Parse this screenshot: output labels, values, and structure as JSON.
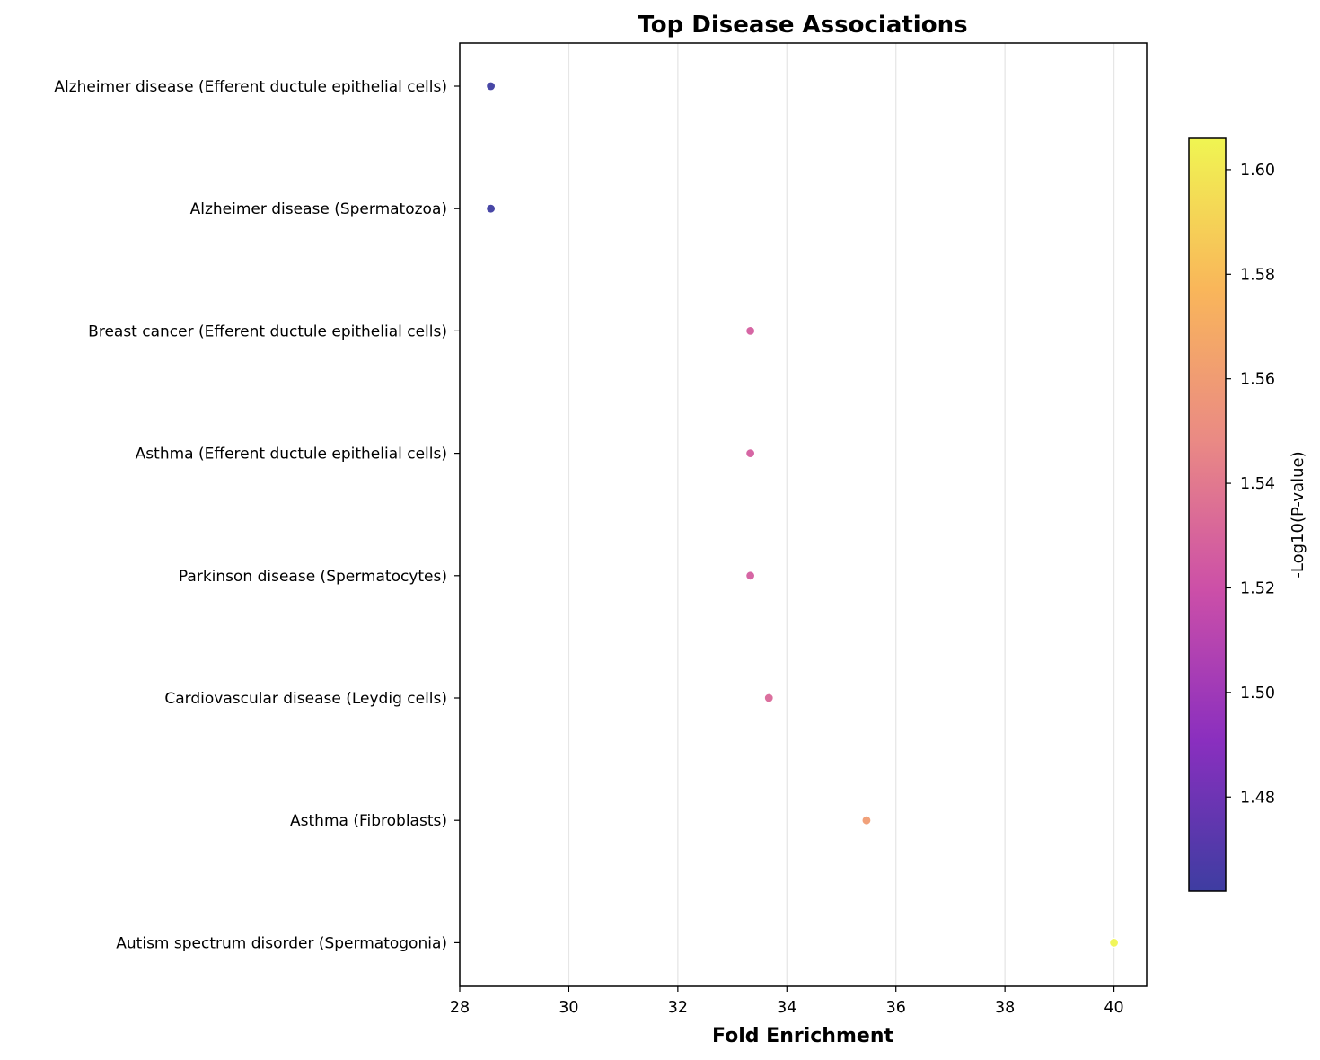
{
  "chart_data": {
    "type": "scatter",
    "title": "Top Disease Associations",
    "xlabel": "Fold Enrichment",
    "ylabel": "",
    "xlim": [
      28,
      40.6
    ],
    "xticks": [
      "28",
      "30",
      "32",
      "34",
      "36",
      "38",
      "40"
    ],
    "grid": "vertical",
    "categories": [
      "Alzheimer disease (Efferent ductule epithelial cells)",
      "Alzheimer disease (Spermatozoa)",
      "Breast cancer (Efferent ductule epithelial cells)",
      "Asthma (Efferent ductule epithelial cells)",
      "Parkinson disease (Spermatocytes)",
      "Cardiovascular disease (Leydig cells)",
      "Asthma (Fibroblasts)",
      "Autism spectrum disorder (Spermatogonia)"
    ],
    "points": [
      {
        "x": 28.57,
        "color_value": 1.462
      },
      {
        "x": 28.57,
        "color_value": 1.462
      },
      {
        "x": 33.33,
        "color_value": 1.527
      },
      {
        "x": 33.33,
        "color_value": 1.527
      },
      {
        "x": 33.33,
        "color_value": 1.527
      },
      {
        "x": 33.67,
        "color_value": 1.532
      },
      {
        "x": 35.46,
        "color_value": 1.56
      },
      {
        "x": 40.0,
        "color_value": 1.606
      }
    ],
    "colorbar": {
      "label": "-Log10(P-value)",
      "colormap": "plasma",
      "range": [
        1.462,
        1.606
      ],
      "ticks": [
        "1.48",
        "1.50",
        "1.52",
        "1.54",
        "1.56",
        "1.58",
        "1.60"
      ],
      "stops": [
        "#3e3da1",
        "#8a2fbf",
        "#cc4fa8",
        "#ea8a84",
        "#f9b65a",
        "#f0f552"
      ]
    }
  }
}
